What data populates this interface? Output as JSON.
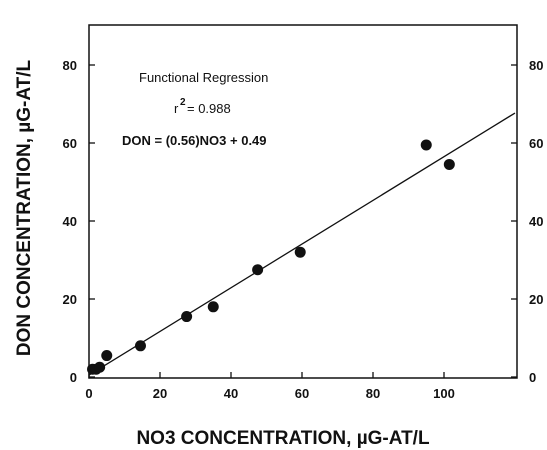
{
  "chart_data": {
    "type": "scatter",
    "title": "",
    "xlabel": "NO3 CONCENTRATION, µG-AT/L",
    "ylabel": "DON CONCENTRATION, µG-AT/L",
    "xlim": [
      0,
      120
    ],
    "ylim": [
      0,
      90
    ],
    "x_ticks": [
      0,
      20,
      40,
      60,
      80,
      100
    ],
    "y_ticks": [
      0,
      20,
      40,
      60,
      80
    ],
    "grid": false,
    "series": [
      {
        "values": [
          {
            "x": 1,
            "y": 2
          },
          {
            "x": 2,
            "y": 2
          },
          {
            "x": 3,
            "y": 2.5
          },
          {
            "x": 5,
            "y": 5.5
          },
          {
            "x": 14.5,
            "y": 8
          },
          {
            "x": 27.5,
            "y": 15.5
          },
          {
            "x": 35,
            "y": 18
          },
          {
            "x": 47.5,
            "y": 27.5
          },
          {
            "x": 59.5,
            "y": 32
          },
          {
            "x": 95,
            "y": 59.5
          },
          {
            "x": 101.5,
            "y": 54.5
          }
        ]
      }
    ],
    "regression": {
      "slope": 0.56,
      "intercept": 0.49,
      "x_range": [
        0,
        120
      ]
    },
    "annotations": {
      "method": "Functional Regression",
      "r2_label": "r",
      "r2_exp": "2",
      "r2_value": "= 0.988",
      "equation": "DON = (0.56)NO3 + 0.49"
    }
  }
}
